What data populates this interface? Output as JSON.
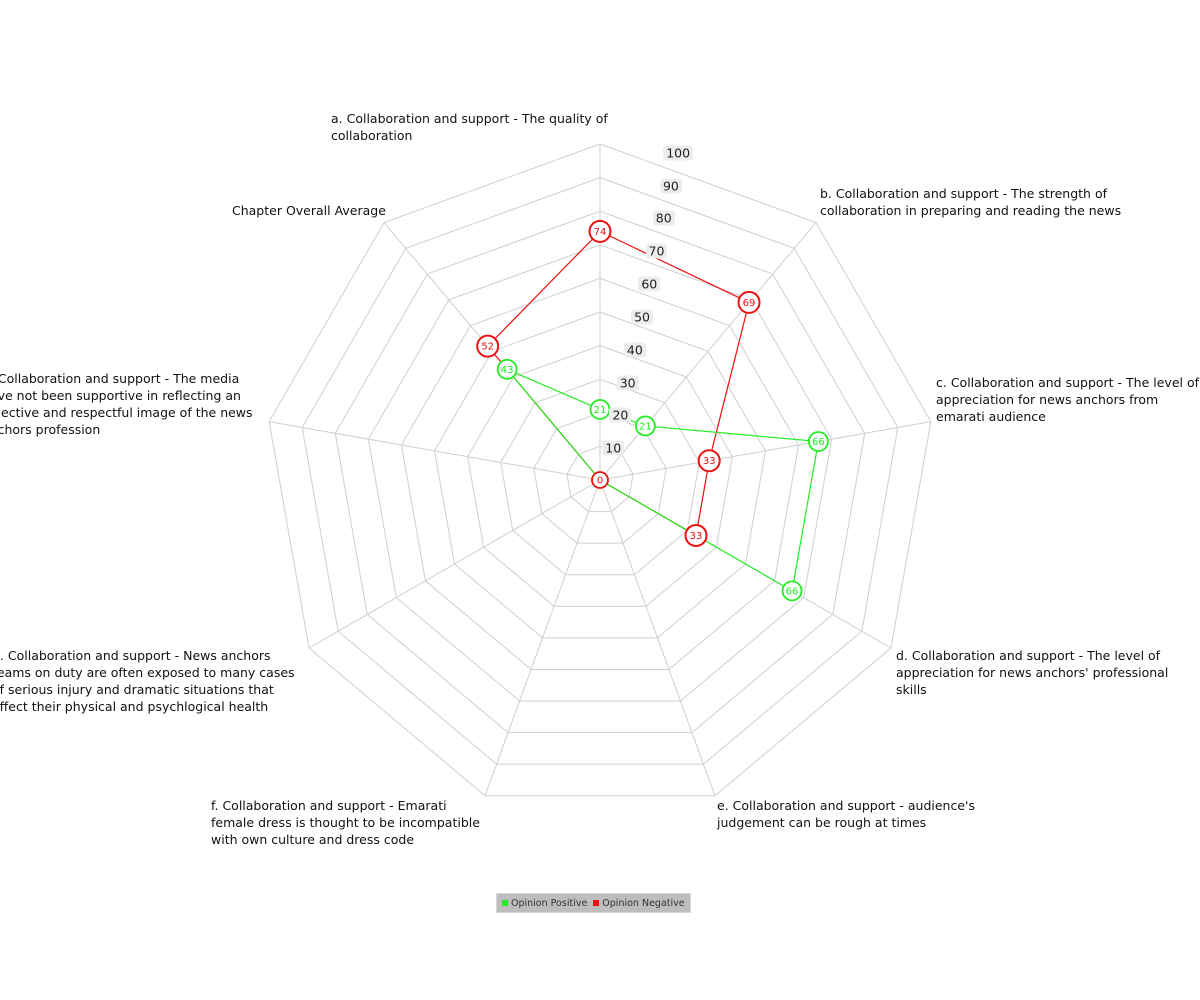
{
  "chart_data": {
    "type": "radar",
    "categories": [
      "a. Collaboration and support - The quality of collaboration",
      "b. Collaboration and support - The strength of collaboration in preparing and reading the news",
      "c. Collaboration and support - The level of appreciation for news anchors from emarati audience",
      "d. Collaboration and support - The level of appreciation for news anchors' professional skills",
      "e. Collaboration and support - audience's judgement can be rough at times",
      "f. Collaboration and support - Emarati female dress is thought to be incompatible with own culture and dress code",
      "g. Collaboration and support - News anchors teams on duty are often exposed to many cases of serious injury and dramatic situations that affect their physical and psychlogical health",
      "h. Collaboration and support - The media have not been supportive in reflecting an objective and respectful image of the news anchors profession",
      "Chapter Overall Average"
    ],
    "ticks": [
      10,
      20,
      30,
      40,
      50,
      60,
      70,
      80,
      90,
      100
    ],
    "rlim": [
      0,
      100
    ],
    "series": [
      {
        "name": "Opinion Positive",
        "color": "#22ee22",
        "values": [
          21,
          21,
          66,
          66,
          0,
          0,
          0,
          0,
          43
        ]
      },
      {
        "name": "Opinion Negative",
        "color": "#ee1111",
        "values": [
          74,
          69,
          33,
          33,
          0,
          0,
          0,
          0,
          52
        ]
      }
    ],
    "overlap_color": "#993300",
    "legend_position": "bottom-center",
    "grid": true
  }
}
